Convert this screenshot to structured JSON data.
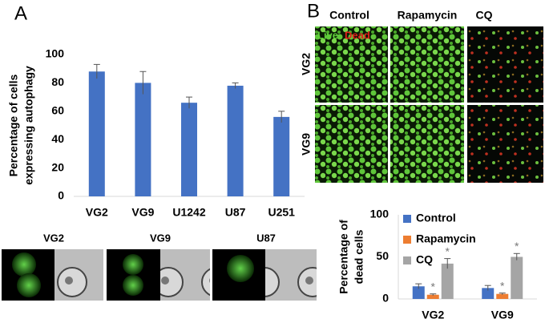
{
  "panels": {
    "a_label": "A",
    "b_label": "B",
    "a_images": [
      "VG2",
      "VG9",
      "U87"
    ],
    "b_columns": [
      "Control",
      "Rapamycin",
      "CQ"
    ],
    "b_rows": [
      "VG2",
      "VG9"
    ],
    "b_stain": [
      "Live",
      "Dead"
    ]
  },
  "chart_data": [
    {
      "type": "bar",
      "ylabel": [
        "Percentage of cells",
        "expressing autophagy"
      ],
      "categories": [
        "VG2",
        "VG9",
        "U1242",
        "U87",
        "U251"
      ],
      "values": [
        88,
        80,
        66,
        78,
        56
      ],
      "errors": [
        5,
        8,
        4,
        2,
        4
      ],
      "color": "#4472c4",
      "ylim": [
        0,
        100
      ],
      "yticks": [
        0,
        20,
        40,
        60,
        80,
        100
      ],
      "grid": false
    },
    {
      "type": "bar",
      "ylabel": [
        "Percentage of",
        "dead cells"
      ],
      "categories": [
        "VG2",
        "VG9"
      ],
      "series": [
        {
          "name": "Control",
          "color": "#4472c4",
          "values": [
            15,
            13
          ],
          "errors": [
            3,
            3
          ]
        },
        {
          "name": "Rapamycin",
          "color": "#ed7d31",
          "values": [
            5,
            6
          ],
          "errors": [
            1,
            1
          ],
          "annotations": [
            "*",
            "*"
          ]
        },
        {
          "name": "CQ",
          "color": "#a5a5a5",
          "values": [
            42,
            50
          ],
          "errors": [
            6,
            4
          ],
          "annotations": [
            "*",
            "*"
          ]
        }
      ],
      "ylim": [
        0,
        100
      ],
      "yticks": [
        0,
        50,
        100
      ],
      "grid": false,
      "legend": "upper left"
    }
  ]
}
